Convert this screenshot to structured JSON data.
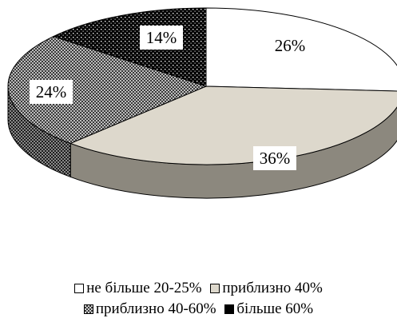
{
  "chart_data": {
    "type": "pie",
    "title": "",
    "slices": [
      {
        "label": "не більше 20-25%",
        "value": 26,
        "data_label": "26%",
        "color": "#ffffff",
        "pattern": "none"
      },
      {
        "label": "приблизно 40%",
        "value": 36,
        "data_label": "36%",
        "color": "#ddd8cc",
        "pattern": "none"
      },
      {
        "label": "приблизно 40-60%",
        "value": 24,
        "data_label": "24%",
        "color": "#5c5c5c",
        "pattern": "checker"
      },
      {
        "label": "більше 60%",
        "value": 14,
        "data_label": "14%",
        "color": "#000000",
        "pattern": "dots"
      }
    ],
    "legend_position": "bottom",
    "style": "3d-pie"
  }
}
